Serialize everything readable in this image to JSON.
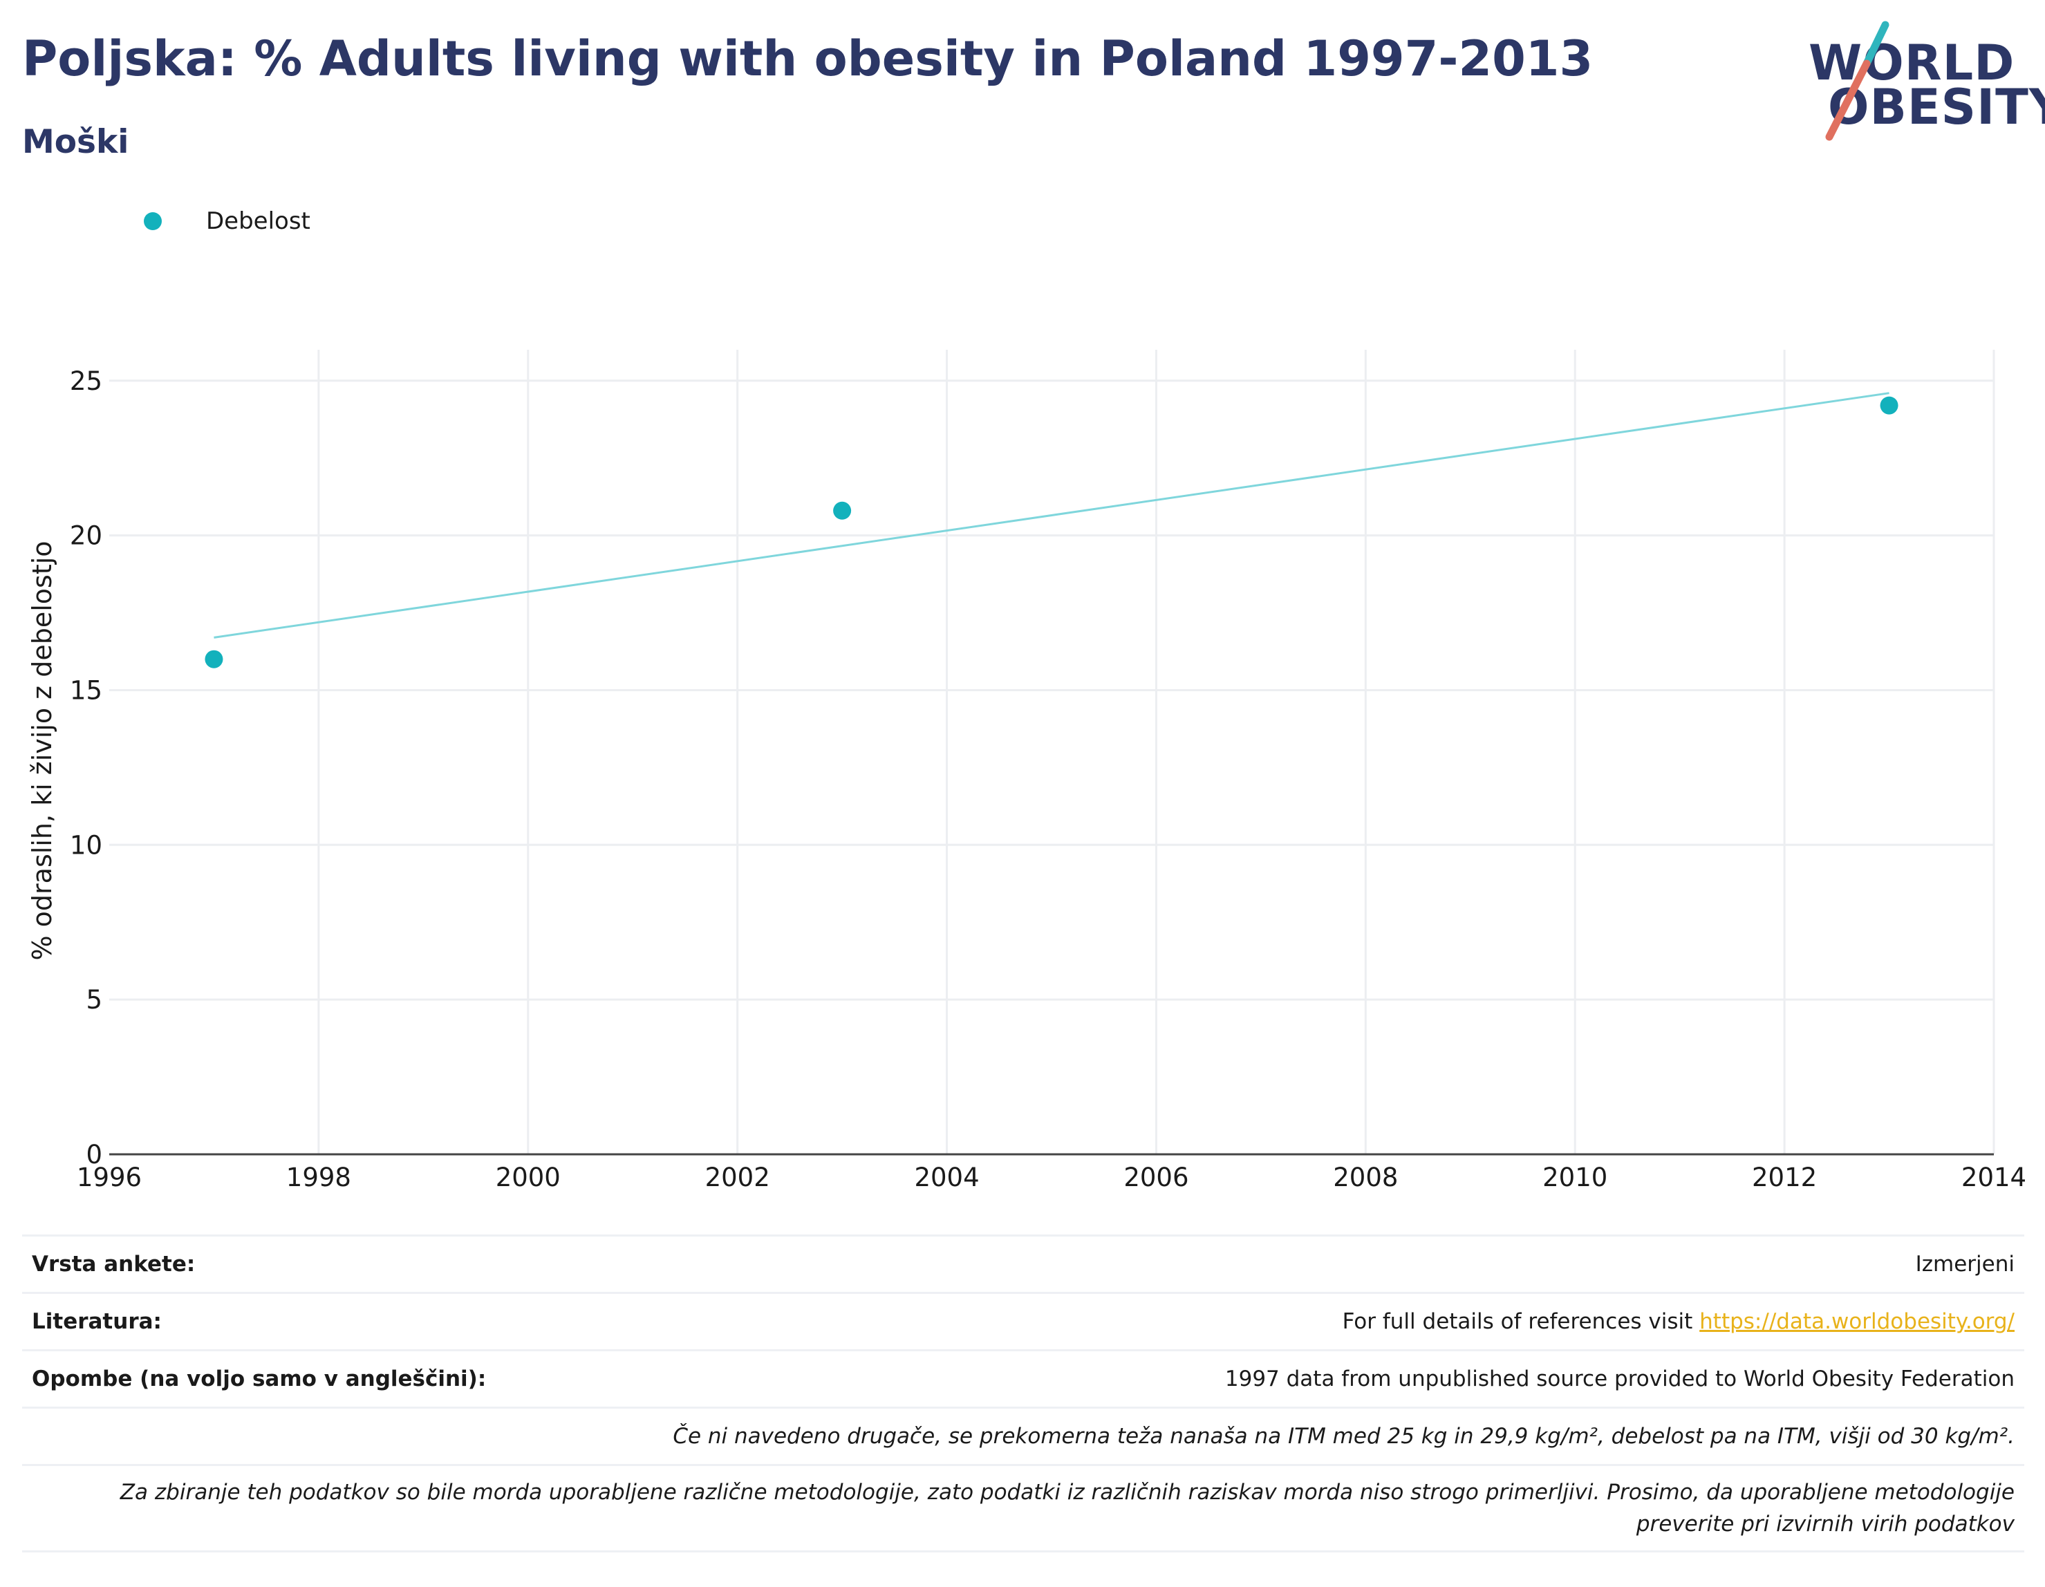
{
  "title": "Poljska: % Adults living with obesity in Poland 1997-2013",
  "subtitle": "Moški",
  "logo": {
    "line1": "WORLD",
    "line2": "OBESITY",
    "slash_color_top": "#2fb5bd",
    "slash_color_bottom": "#e0705f"
  },
  "colors": {
    "title": "#2c3766",
    "series": "#13b1bc",
    "trend": "#7fd6dc",
    "link": "#e8b21a"
  },
  "chart_data": {
    "type": "scatter",
    "title": "Poljska: % Adults living with obesity in Poland 1997-2013",
    "subtitle": "Moški",
    "ylabel": "% odraslih, ki živijo z debelostjo",
    "xlabel": "",
    "xlim": [
      1996,
      2014
    ],
    "ylim": [
      0,
      26
    ],
    "xticks": [
      1996,
      1998,
      2000,
      2002,
      2004,
      2006,
      2008,
      2010,
      2012,
      2014
    ],
    "yticks": [
      0,
      5,
      10,
      15,
      20,
      25
    ],
    "grid": true,
    "legend_position": "top-left",
    "series": [
      {
        "name": "Debelost",
        "x": [
          1997,
          2003,
          2013
        ],
        "y": [
          16.0,
          20.8,
          24.2
        ]
      }
    ],
    "trendline": {
      "x": [
        1997,
        2013
      ],
      "y": [
        16.7,
        24.6
      ]
    }
  },
  "info": {
    "survey_type_label": "Vrsta ankete:",
    "survey_type_value": "Izmerjeni",
    "references_label": "Literatura:",
    "references_text": "For full details of references visit ",
    "references_link": "https://data.worldobesity.org/",
    "notes_label": "Opombe (na voljo samo v angleščini):",
    "notes_value": "1997 data from unpublished source provided to World Obesity Federation",
    "definition_note": "Če ni navedeno drugače, se prekomerna teža nanaša na ITM med 25 kg in 29,9 kg/m², debelost pa na ITM, višji od 30 kg/m².",
    "methodology_note_line1": "Za zbiranje teh podatkov so bile morda uporabljene različne metodologije, zato podatki iz različnih raziskav morda niso strogo primerljivi. Prosimo, da uporabljene metodologije",
    "methodology_note_line2": "preverite pri izvirnih virih podatkov"
  }
}
